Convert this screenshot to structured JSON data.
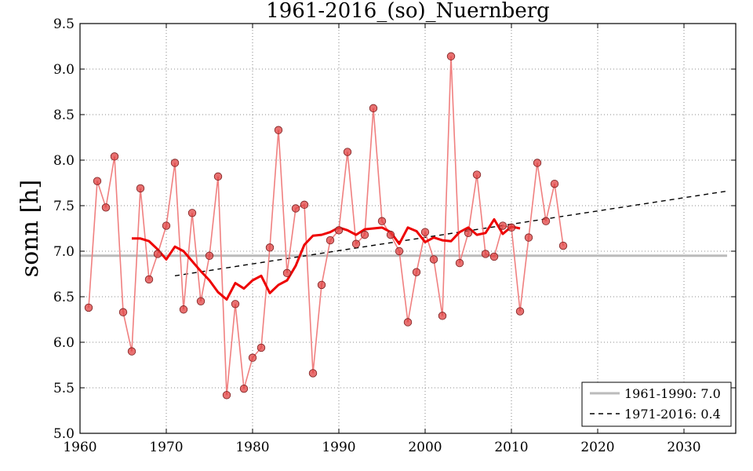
{
  "chart_data": {
    "type": "line",
    "title": "1961-2016_(so)_Nuernberg",
    "xlabel": "",
    "ylabel": "sonn [h]",
    "xlim": [
      1960,
      2036
    ],
    "ylim": [
      5.0,
      9.5
    ],
    "xticks": [
      1960,
      1970,
      1980,
      1990,
      2000,
      2010,
      2020,
      2030
    ],
    "yticks": [
      5.0,
      5.5,
      6.0,
      6.5,
      7.0,
      7.5,
      8.0,
      8.5,
      9.0,
      9.5
    ],
    "grid": true,
    "legend_position": "bottom-right",
    "colors": {
      "annual": "#f08080",
      "marker": "#e04040",
      "smooth": "#ee0000",
      "baseline": "#bbbbbb",
      "trend": "#000000"
    },
    "series": [
      {
        "name": "annual",
        "x": [
          1961,
          1962,
          1963,
          1964,
          1965,
          1966,
          1967,
          1968,
          1969,
          1970,
          1971,
          1972,
          1973,
          1974,
          1975,
          1976,
          1977,
          1978,
          1979,
          1980,
          1981,
          1982,
          1983,
          1984,
          1985,
          1986,
          1987,
          1988,
          1989,
          1990,
          1991,
          1992,
          1993,
          1994,
          1995,
          1996,
          1997,
          1998,
          1999,
          2000,
          2001,
          2002,
          2003,
          2004,
          2005,
          2006,
          2007,
          2008,
          2009,
          2010,
          2011,
          2012,
          2013,
          2014,
          2015,
          2016
        ],
        "values": [
          6.38,
          7.77,
          7.48,
          8.04,
          6.33,
          5.9,
          7.69,
          6.69,
          6.97,
          7.28,
          7.97,
          6.36,
          7.42,
          6.45,
          6.95,
          7.82,
          5.42,
          6.42,
          5.49,
          5.83,
          5.94,
          7.04,
          8.33,
          6.76,
          7.47,
          7.51,
          5.66,
          6.63,
          7.12,
          7.23,
          8.09,
          7.08,
          7.18,
          8.57,
          7.33,
          7.18,
          7.0,
          6.22,
          6.77,
          7.21,
          6.91,
          6.29,
          9.14,
          6.87,
          7.2,
          7.84,
          6.97,
          6.94,
          7.28,
          7.26,
          6.34,
          7.15,
          7.97,
          7.33,
          7.74,
          7.06
        ]
      },
      {
        "name": "smoothed",
        "x": [
          1966,
          1967,
          1968,
          1969,
          1970,
          1971,
          1972,
          1973,
          1974,
          1975,
          1976,
          1977,
          1978,
          1979,
          1980,
          1981,
          1982,
          1983,
          1984,
          1985,
          1986,
          1987,
          1988,
          1989,
          1990,
          1991,
          1992,
          1993,
          1994,
          1995,
          1996,
          1997,
          1998,
          1999,
          2000,
          2001,
          2002,
          2003,
          2004,
          2005,
          2006,
          2007,
          2008,
          2009,
          2010,
          2011
        ],
        "values": [
          7.14,
          7.14,
          7.11,
          7.02,
          6.91,
          7.05,
          7.0,
          6.89,
          6.78,
          6.68,
          6.55,
          6.47,
          6.65,
          6.59,
          6.68,
          6.73,
          6.54,
          6.63,
          6.68,
          6.84,
          7.07,
          7.17,
          7.18,
          7.21,
          7.26,
          7.23,
          7.18,
          7.24,
          7.25,
          7.26,
          7.21,
          7.08,
          7.26,
          7.22,
          7.1,
          7.15,
          7.12,
          7.11,
          7.21,
          7.26,
          7.18,
          7.2,
          7.35,
          7.19,
          7.27,
          7.25
        ]
      }
    ],
    "baseline": {
      "label": "1961-1990: 7.0",
      "y": 6.95,
      "x_start": 1960,
      "x_end": 2035
    },
    "trend": {
      "label": "1971-2016: 0.4",
      "x_start": 1971,
      "y_start": 6.73,
      "x_end": 2035,
      "y_end": 7.66
    }
  }
}
